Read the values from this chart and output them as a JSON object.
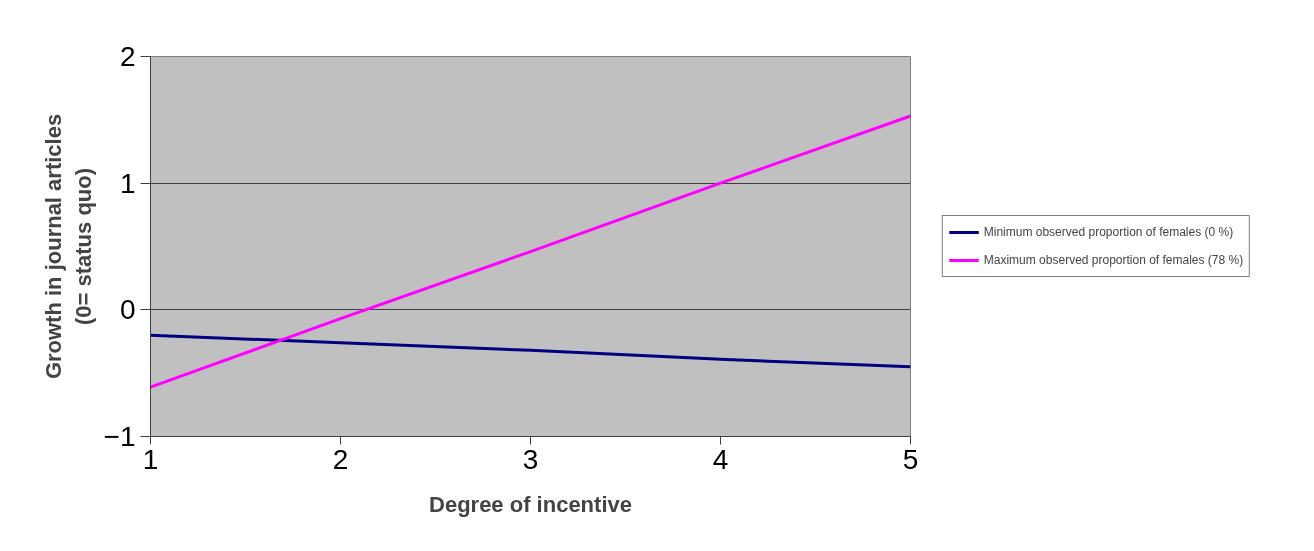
{
  "chart_data": {
    "type": "line",
    "xlabel": "Degree of incentive",
    "ylabel": "Growth in journal articles\n(0= status quo)",
    "x": [
      1,
      2,
      3,
      4,
      5
    ],
    "series": [
      {
        "name": "Minimum observed proportion of females (0 %)",
        "color": "#000080",
        "values": [
          -0.2,
          -0.26,
          -0.32,
          -0.39,
          -0.45
        ]
      },
      {
        "name": "Maximum observed proportion of females (78 %)",
        "color": "#ff00ff",
        "values": [
          -0.61,
          -0.07,
          0.46,
          1.0,
          1.53
        ]
      }
    ],
    "xlim": [
      1,
      5
    ],
    "xticks": [
      1,
      2,
      3,
      4,
      5
    ],
    "ylim": [
      -1,
      2
    ],
    "yticks": [
      -1,
      0,
      1,
      2
    ],
    "grid": "y",
    "legend": "right",
    "marker": "none",
    "line_style": "solid"
  }
}
